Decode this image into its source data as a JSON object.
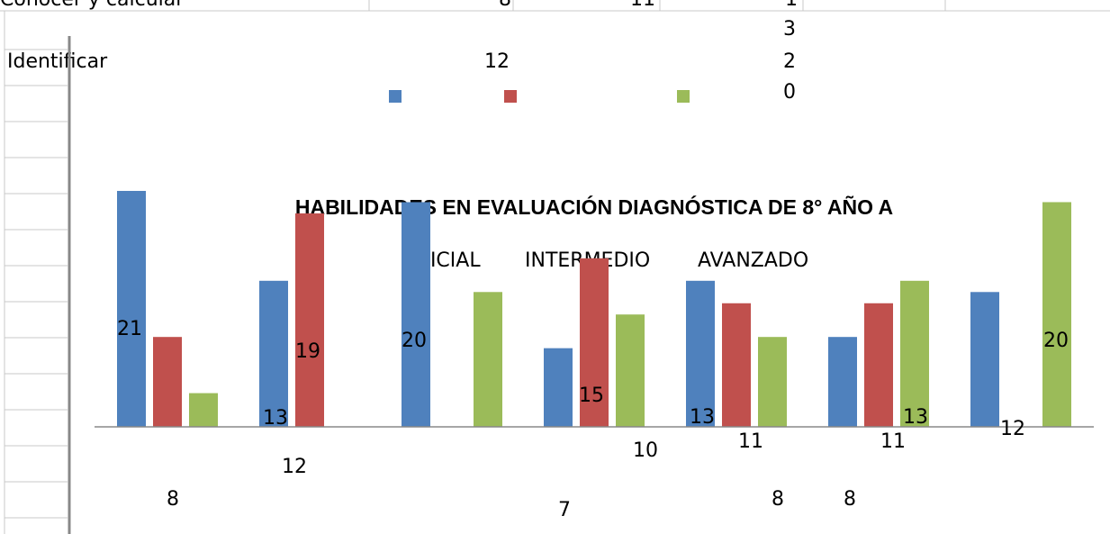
{
  "sheet": {
    "row1": {
      "label": "Conocer y calcular",
      "cells": [
        "8",
        "11",
        "1"
      ]
    },
    "row2": {
      "label": "Identificar",
      "cells": [
        "12"
      ]
    },
    "stacked": [
      "3",
      "2",
      "0"
    ]
  },
  "chart_data": {
    "type": "bar",
    "title": "HABILIDADES EN EVALUACIÓN DIAGNÓSTICA DE 8° AÑO A",
    "categories": [
      null,
      null,
      null,
      null,
      null,
      null,
      null
    ],
    "series": [
      {
        "name": "INICIAL",
        "color": "#4f81bd",
        "values": [
          21,
          13,
          20,
          7,
          13,
          8,
          12
        ]
      },
      {
        "name": "INTERMEDIO",
        "color": "#c0504d",
        "values": [
          8,
          19,
          null,
          15,
          11,
          11,
          null
        ]
      },
      {
        "name": "AVANZADO",
        "color": "#9bbb59",
        "values": [
          3,
          null,
          12,
          10,
          8,
          13,
          20
        ]
      }
    ],
    "ylim": [
      0,
      21
    ]
  }
}
